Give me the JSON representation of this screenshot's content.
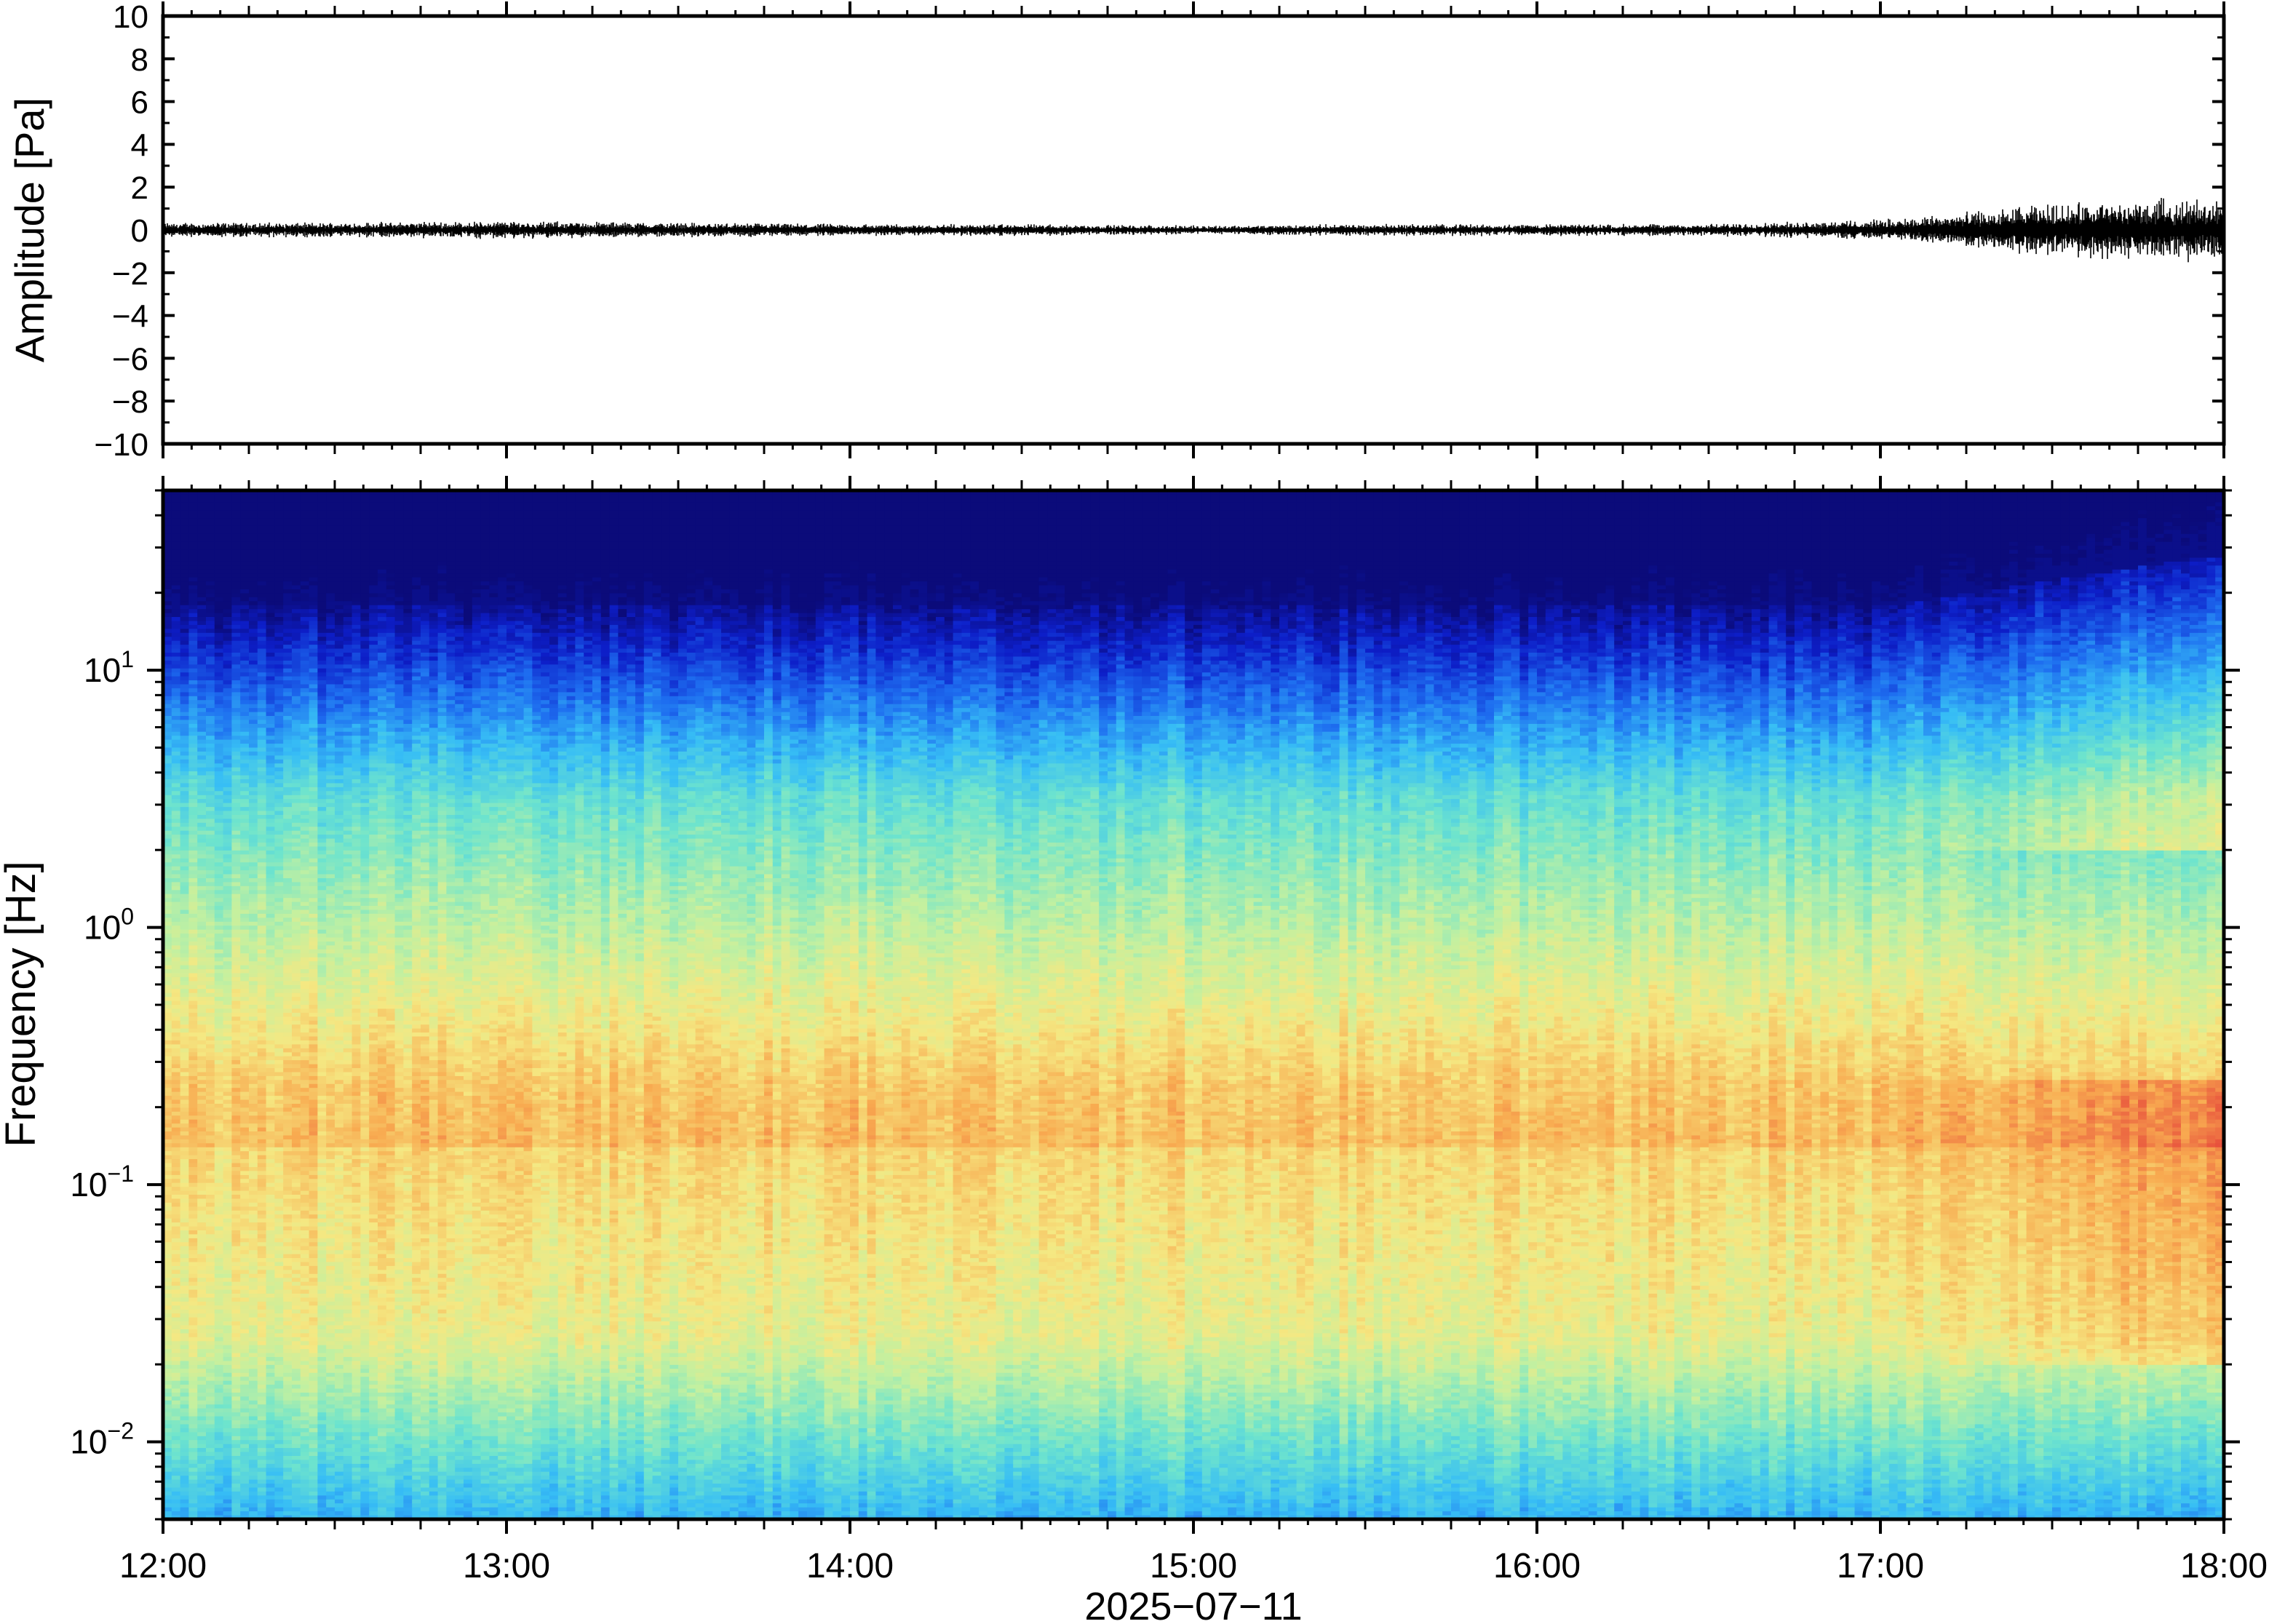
{
  "chart_data": [
    {
      "type": "line",
      "panel": "waveform",
      "ylabel": "Amplitude [Pa]",
      "ylim": [
        -10,
        10
      ],
      "yticks": [
        "10",
        "8",
        "6",
        "4",
        "2",
        "0",
        "−2",
        "−4",
        "−6",
        "−8",
        "−10"
      ],
      "ytick_values": [
        10,
        8,
        6,
        4,
        2,
        0,
        -2,
        -4,
        -6,
        -8,
        -10
      ],
      "xlim": [
        "12:00",
        "18:00"
      ],
      "grid": false,
      "series": [
        {
          "x": [
            "12:00",
            "12:30",
            "13:00",
            "13:30",
            "14:00",
            "14:30",
            "15:00",
            "15:30",
            "16:00",
            "16:30",
            "17:00",
            "17:15",
            "17:30",
            "17:45",
            "18:00"
          ],
          "envelope": [
            0.25,
            0.25,
            0.3,
            0.25,
            0.2,
            0.2,
            0.15,
            0.2,
            0.2,
            0.2,
            0.35,
            0.6,
            0.9,
            1.0,
            1.1
          ]
        }
      ]
    },
    {
      "type": "heatmap",
      "panel": "spectrogram",
      "ylabel": "Frequency [Hz]",
      "xlabel": "2025−07−11",
      "yscale": "log",
      "ylim": [
        0.005,
        50
      ],
      "yticks": [
        {
          "base": "10",
          "exp": "1",
          "value": 10
        },
        {
          "base": "10",
          "exp": "0",
          "value": 1
        },
        {
          "base": "10",
          "exp": "−1",
          "value": 0.1
        },
        {
          "base": "10",
          "exp": "−2",
          "value": 0.01
        }
      ],
      "xticks": [
        "12:00",
        "13:00",
        "14:00",
        "15:00",
        "16:00",
        "17:00",
        "18:00"
      ],
      "colormap": "jet",
      "colors": {
        "low": "#0b0b7a",
        "mid": "#6fe3c8",
        "high": "#e84a3c"
      },
      "grid": false
    }
  ]
}
